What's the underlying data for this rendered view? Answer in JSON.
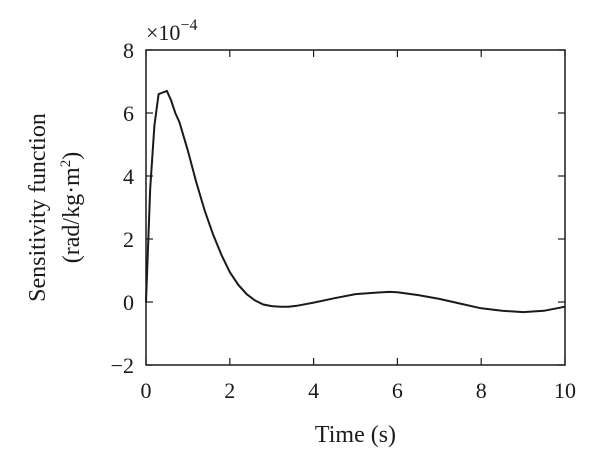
{
  "chart_data": {
    "type": "line",
    "xlabel": "Time (s)",
    "ylabel_line1": "Sensitivity function",
    "ylabel_line2_main": "(rad/kg·m",
    "ylabel_line2_sup": "2",
    "ylabel_line2_close": ")",
    "y_exponent_prefix": "×10",
    "y_exponent_power": "−4",
    "xlim": [
      0,
      10
    ],
    "ylim": [
      -2,
      8
    ],
    "x_ticks": [
      0,
      2,
      4,
      6,
      8,
      10
    ],
    "x_tick_labels": [
      "0",
      "2",
      "4",
      "6",
      "8",
      "10"
    ],
    "y_ticks": [
      -2,
      0,
      2,
      4,
      6,
      8
    ],
    "y_tick_labels": [
      "−2",
      "0",
      "2",
      "4",
      "6",
      "8"
    ],
    "grid": false,
    "line_color": "#1a1a1a",
    "series": [
      {
        "x": [
          0,
          0.1,
          0.2,
          0.3,
          0.4,
          0.5,
          0.6,
          0.7,
          0.8,
          1.0,
          1.2,
          1.4,
          1.6,
          1.8,
          2.0,
          2.2,
          2.4,
          2.6,
          2.8,
          3.0,
          3.2,
          3.4,
          3.6,
          4.0,
          4.5,
          5.0,
          5.5,
          5.8,
          6.0,
          6.5,
          7.0,
          7.5,
          8.0,
          8.5,
          9.0,
          9.5,
          10.0
        ],
        "y": [
          0,
          3.6,
          5.6,
          6.6,
          6.65,
          6.7,
          6.4,
          6.0,
          5.7,
          4.8,
          3.8,
          2.9,
          2.15,
          1.5,
          0.95,
          0.55,
          0.25,
          0.05,
          -0.08,
          -0.13,
          -0.15,
          -0.15,
          -0.12,
          -0.02,
          0.12,
          0.25,
          0.3,
          0.32,
          0.31,
          0.22,
          0.1,
          -0.05,
          -0.2,
          -0.28,
          -0.32,
          -0.28,
          -0.15
        ]
      }
    ]
  }
}
